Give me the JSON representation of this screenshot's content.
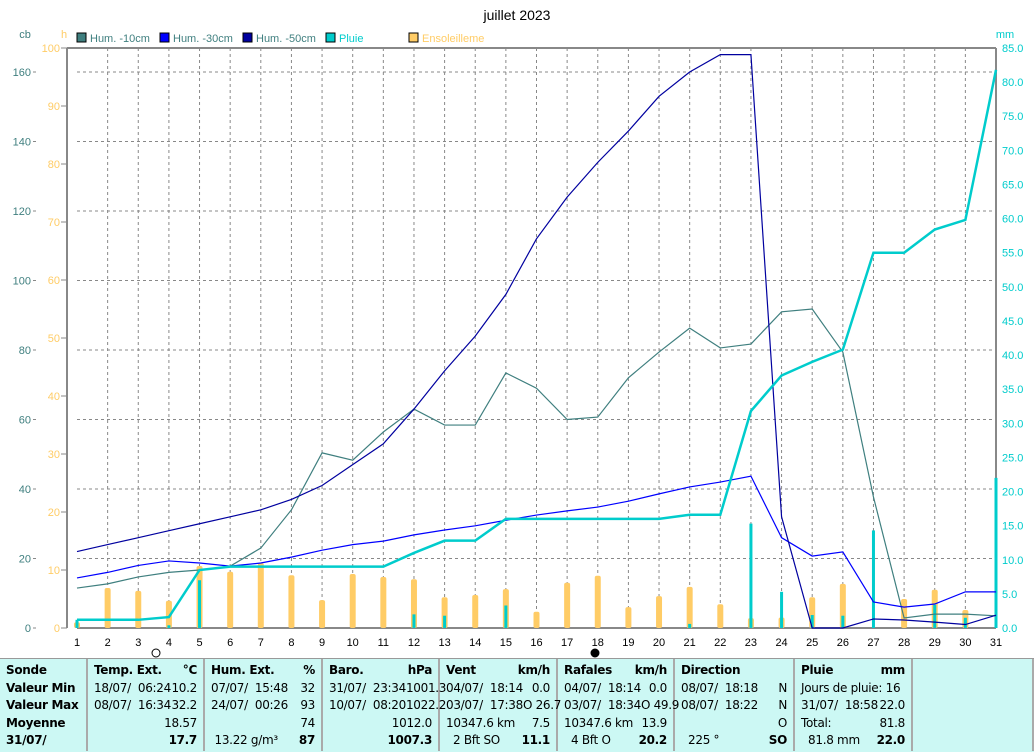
{
  "chart_data": {
    "type": "line",
    "title": "juillet 2023",
    "axes": {
      "left_cb": {
        "label": "cb",
        "range": [
          0,
          167
        ],
        "ticks": [
          0,
          20,
          40,
          60,
          80,
          100,
          120,
          140,
          160
        ]
      },
      "left_h": {
        "label": "h",
        "range": [
          0,
          100
        ],
        "ticks": [
          0,
          10,
          20,
          30,
          40,
          50,
          60,
          70,
          80,
          90,
          100
        ]
      },
      "right_mm": {
        "label": "mm",
        "range": [
          0,
          85
        ],
        "ticks": [
          "0.0",
          "5.0",
          "10.0",
          "15.0",
          "20.0",
          "25.0",
          "30.0",
          "35.0",
          "40.0",
          "45.0",
          "50.0",
          "55.0",
          "60.0",
          "65.0",
          "70.0",
          "75.0",
          "80.0",
          "85.0"
        ]
      }
    },
    "x": [
      1,
      2,
      3,
      4,
      5,
      6,
      7,
      8,
      9,
      10,
      11,
      12,
      13,
      14,
      15,
      16,
      17,
      18,
      19,
      20,
      21,
      22,
      23,
      24,
      25,
      26,
      27,
      28,
      29,
      30,
      31
    ],
    "grid": true,
    "legend": "top",
    "series": [
      {
        "name": "Hum. -10cm",
        "color": "#3f7f7f",
        "axis": "cb",
        "values": [
          11.5,
          12.7,
          14.7,
          16,
          16.7,
          17.8,
          23,
          34,
          50.4,
          48.3,
          56.4,
          63,
          58.4,
          58.4,
          73.4,
          69,
          60,
          60.7,
          72,
          79.4,
          86.3,
          80.6,
          81.7,
          91,
          91.8,
          79.4,
          37.7,
          2.9,
          4,
          4,
          3.5
        ]
      },
      {
        "name": "Hum. -30cm",
        "color": "#0000ff",
        "axis": "cb",
        "values": [
          14.4,
          16,
          18,
          19.3,
          18.7,
          17.8,
          18.7,
          20.4,
          22.4,
          24,
          25,
          26.8,
          28.2,
          29.4,
          31,
          32.5,
          33.7,
          34.8,
          36.5,
          38.6,
          40.6,
          42,
          43.7,
          26,
          20.7,
          21.9,
          7.5,
          6,
          6.9,
          10.4,
          10.4
        ]
      },
      {
        "name": "Hum. -50cm",
        "color": "#00009f",
        "axis": "cb",
        "values": [
          22,
          24,
          26,
          28,
          30,
          32,
          34,
          37,
          41,
          47,
          53,
          63,
          74,
          84,
          96,
          112,
          124,
          134,
          143,
          153,
          160,
          165,
          165,
          32,
          0,
          0,
          2.6,
          2.3,
          1.7,
          1,
          3.7
        ]
      },
      {
        "name": "Pluie",
        "color": "#00cccc",
        "axis": "mm",
        "values": [
          1.2,
          1.2,
          1.2,
          1.6,
          8.5,
          9,
          9,
          9,
          9,
          9,
          9,
          11,
          12.8,
          12.8,
          16,
          16,
          16,
          16,
          16,
          16,
          16.6,
          16.6,
          31.8,
          37,
          39,
          40.8,
          55,
          55,
          58.4,
          59.8,
          81.8
        ],
        "daily": [
          1.2,
          0,
          0,
          0.4,
          7,
          0,
          0,
          0,
          0,
          0,
          0,
          2,
          1.8,
          0,
          3.3,
          0,
          0,
          0,
          0,
          0,
          0.6,
          0,
          15.3,
          5.3,
          1.9,
          1.8,
          14.3,
          0,
          3.4,
          1.5,
          22
        ]
      },
      {
        "name": "Ensoleilleme",
        "color": "#ffcc66",
        "axis": "h",
        "type": "bar",
        "values": [
          1,
          6.9,
          6.4,
          4.7,
          10.7,
          9.7,
          11.2,
          9.1,
          4.8,
          9.3,
          8.8,
          8.4,
          5.3,
          5.7,
          6.7,
          2.8,
          7.8,
          9,
          3.6,
          5.5,
          7.1,
          4.1,
          1.7,
          1.8,
          5.3,
          7.6,
          0,
          5,
          6.6,
          3.1,
          0
        ]
      }
    ]
  },
  "table": [
    {
      "header": [
        "Sonde",
        ""
      ],
      "rows": [
        [
          "Valeur Min",
          ""
        ],
        [
          "Valeur Max",
          ""
        ],
        [
          "Moyenne",
          ""
        ],
        [
          "31/07/",
          ""
        ]
      ],
      "boldleft": true
    },
    {
      "header": [
        "Temp. Ext.",
        "°C"
      ],
      "rows": [
        [
          "18/07/  06:24",
          "10.2"
        ],
        [
          "08/07/  16:34",
          "32.2"
        ],
        [
          "",
          "18.57"
        ],
        [
          "",
          "17.7"
        ]
      ]
    },
    {
      "header": [
        "Hum. Ext.",
        "%"
      ],
      "rows": [
        [
          "07/07/  15:48",
          "32"
        ],
        [
          "24/07/  00:26",
          "93"
        ],
        [
          "",
          "74"
        ],
        [
          " 13.22 g/m³",
          "87"
        ]
      ]
    },
    {
      "header": [
        "Baro.",
        "hPa"
      ],
      "rows": [
        [
          "31/07/  23:34",
          "1001.3"
        ],
        [
          "10/07/  08:20",
          "1022.2"
        ],
        [
          "",
          "1012.0"
        ],
        [
          "",
          "1007.3"
        ]
      ]
    },
    {
      "header": [
        "Vent",
        "km/h"
      ],
      "rows": [
        [
          "04/07/  18:14",
          "0.0"
        ],
        [
          "03/07/  17:38",
          "O 26.7"
        ],
        [
          "10347.6 km",
          "7.5"
        ],
        [
          "  2 Bft SO",
          "11.1"
        ]
      ]
    },
    {
      "header": [
        "Rafales",
        "km/h"
      ],
      "rows": [
        [
          "04/07/  18:14",
          "0.0"
        ],
        [
          "03/07/  18:34",
          "O 49.9"
        ],
        [
          "10347.6 km",
          "13.9"
        ],
        [
          "  4 Bft O",
          "20.2"
        ]
      ]
    },
    {
      "header": [
        "Direction",
        ""
      ],
      "rows": [
        [
          "08/07/  18:18",
          "N"
        ],
        [
          "08/07/  18:22",
          "N"
        ],
        [
          "",
          "O"
        ],
        [
          "  225 °",
          "SO"
        ]
      ]
    },
    {
      "header": [
        "Pluie",
        "mm"
      ],
      "rows": [
        [
          "Jours de pluie: 16",
          ""
        ],
        [
          "31/07/  18:58",
          "22.0"
        ],
        [
          "Total:",
          "81.8"
        ],
        [
          "  81.8 mm",
          "22.0"
        ]
      ]
    },
    {
      "header": [
        "",
        ""
      ],
      "rows": []
    }
  ]
}
